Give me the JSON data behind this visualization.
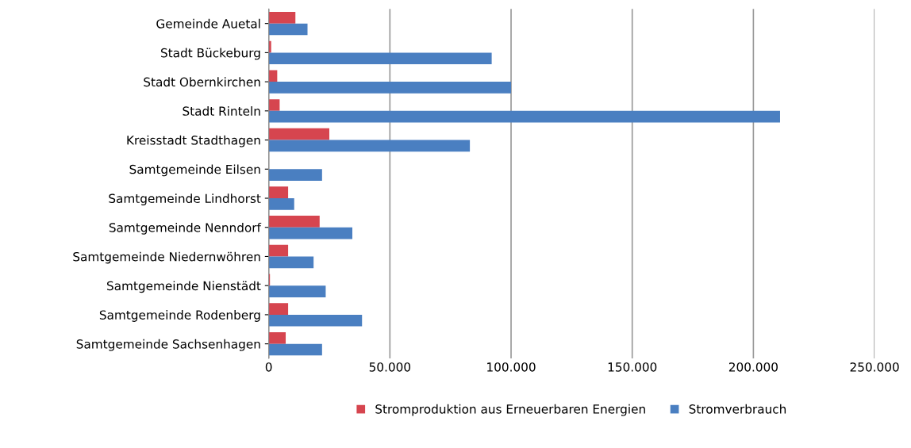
{
  "chart_data": {
    "type": "bar",
    "orientation": "horizontal",
    "categories": [
      "Gemeinde Auetal",
      "Stadt Bückeburg",
      "Stadt Obernkirchen",
      "Stadt Rinteln",
      "Kreisstadt Stadthagen",
      "Samtgemeinde Eilsen",
      "Samtgemeinde Lindhorst",
      "Samtgemeinde Nenndorf",
      "Samtgemeinde Niedernwöhren",
      "Samtgemeinde Nienstädt",
      "Samtgemeinde Rodenberg",
      "Samtgemeinde Sachsenhagen"
    ],
    "series": [
      {
        "name": "Stromproduktion aus Erneuerbaren Energien",
        "color": "#d6454f",
        "values": [
          11000,
          1000,
          3500,
          4500,
          25000,
          0,
          8000,
          21000,
          8000,
          500,
          8000,
          7000
        ]
      },
      {
        "name": "Stromverbrauch",
        "color": "#4a7fc1",
        "values": [
          16000,
          92000,
          100000,
          211000,
          83000,
          22000,
          10500,
          34500,
          18500,
          23500,
          38500,
          22000
        ]
      }
    ],
    "xlim": [
      0,
      250000
    ],
    "xticks": [
      {
        "value": 0,
        "label": "0"
      },
      {
        "value": 50000,
        "label": "50.000"
      },
      {
        "value": 100000,
        "label": "100.000"
      },
      {
        "value": 150000,
        "label": "150.000"
      },
      {
        "value": 200000,
        "label": "200.000"
      },
      {
        "value": 250000,
        "label": "250.000"
      }
    ],
    "grid": "x",
    "legend": "bottom"
  }
}
